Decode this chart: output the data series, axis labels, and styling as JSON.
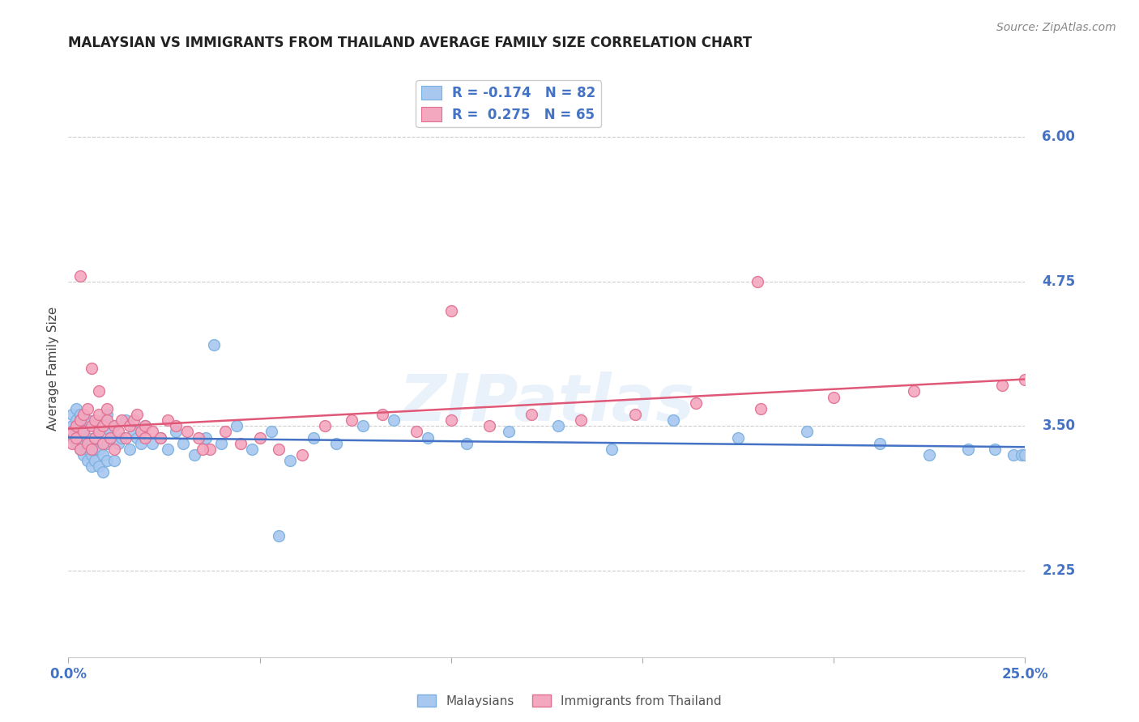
{
  "title": "MALAYSIAN VS IMMIGRANTS FROM THAILAND AVERAGE FAMILY SIZE CORRELATION CHART",
  "source": "Source: ZipAtlas.com",
  "ylabel": "Average Family Size",
  "xmin": 0.0,
  "xmax": 0.25,
  "ymin": 1.5,
  "ymax": 6.5,
  "yticks": [
    2.25,
    3.5,
    4.75,
    6.0
  ],
  "xticks": [
    0.0,
    0.05,
    0.1,
    0.15,
    0.2,
    0.25
  ],
  "watermark": "ZIPatlas",
  "series": [
    {
      "label": "Malaysians",
      "R": -0.174,
      "N": 82,
      "color": "#a8c8f0",
      "line_color": "#4472c4",
      "marker_edge": "#7ab0e0",
      "x": [
        0.001,
        0.001,
        0.001,
        0.002,
        0.002,
        0.002,
        0.002,
        0.003,
        0.003,
        0.003,
        0.003,
        0.003,
        0.004,
        0.004,
        0.004,
        0.004,
        0.005,
        0.005,
        0.005,
        0.005,
        0.005,
        0.006,
        0.006,
        0.006,
        0.007,
        0.007,
        0.007,
        0.007,
        0.008,
        0.008,
        0.008,
        0.009,
        0.009,
        0.009,
        0.01,
        0.01,
        0.01,
        0.011,
        0.011,
        0.012,
        0.012,
        0.013,
        0.014,
        0.015,
        0.016,
        0.017,
        0.018,
        0.019,
        0.02,
        0.022,
        0.024,
        0.026,
        0.028,
        0.03,
        0.033,
        0.036,
        0.04,
        0.044,
        0.048,
        0.053,
        0.058,
        0.064,
        0.07,
        0.077,
        0.085,
        0.094,
        0.104,
        0.115,
        0.128,
        0.142,
        0.158,
        0.175,
        0.193,
        0.212,
        0.225,
        0.235,
        0.242,
        0.247,
        0.249,
        0.25,
        0.038,
        0.055
      ],
      "y": [
        3.4,
        3.5,
        3.6,
        3.35,
        3.45,
        3.55,
        3.65,
        3.3,
        3.4,
        3.5,
        3.55,
        3.6,
        3.25,
        3.35,
        3.45,
        3.55,
        3.2,
        3.3,
        3.4,
        3.5,
        3.55,
        3.15,
        3.25,
        3.35,
        3.2,
        3.3,
        3.4,
        3.5,
        3.15,
        3.3,
        3.45,
        3.1,
        3.25,
        3.55,
        3.2,
        3.35,
        3.6,
        3.45,
        3.4,
        3.2,
        3.5,
        3.35,
        3.4,
        3.55,
        3.3,
        3.45,
        3.4,
        3.35,
        3.5,
        3.35,
        3.4,
        3.3,
        3.45,
        3.35,
        3.25,
        3.4,
        3.35,
        3.5,
        3.3,
        3.45,
        3.2,
        3.4,
        3.35,
        3.5,
        3.55,
        3.4,
        3.35,
        3.45,
        3.5,
        3.3,
        3.55,
        3.4,
        3.45,
        3.35,
        3.25,
        3.3,
        3.3,
        3.25,
        3.25,
        3.25,
        4.2,
        2.55
      ]
    },
    {
      "label": "Immigrants from Thailand",
      "R": 0.275,
      "N": 65,
      "color": "#f4a8c0",
      "line_color": "#e05878",
      "marker_edge": "#e07090",
      "x": [
        0.001,
        0.001,
        0.002,
        0.002,
        0.003,
        0.003,
        0.004,
        0.004,
        0.005,
        0.005,
        0.006,
        0.006,
        0.007,
        0.007,
        0.008,
        0.008,
        0.009,
        0.009,
        0.01,
        0.01,
        0.011,
        0.012,
        0.013,
        0.014,
        0.015,
        0.016,
        0.017,
        0.018,
        0.019,
        0.02,
        0.022,
        0.024,
        0.026,
        0.028,
        0.031,
        0.034,
        0.037,
        0.041,
        0.045,
        0.05,
        0.055,
        0.061,
        0.067,
        0.074,
        0.082,
        0.091,
        0.1,
        0.11,
        0.121,
        0.134,
        0.148,
        0.164,
        0.181,
        0.2,
        0.221,
        0.244,
        0.25,
        0.003,
        0.006,
        0.008,
        0.012,
        0.02,
        0.035,
        0.1,
        0.18
      ],
      "y": [
        3.35,
        3.45,
        3.4,
        3.5,
        3.3,
        3.55,
        3.45,
        3.6,
        3.35,
        3.65,
        3.3,
        3.5,
        3.4,
        3.55,
        3.45,
        3.6,
        3.35,
        3.5,
        3.55,
        3.65,
        3.4,
        3.5,
        3.45,
        3.55,
        3.4,
        3.5,
        3.55,
        3.6,
        3.45,
        3.5,
        3.45,
        3.4,
        3.55,
        3.5,
        3.45,
        3.4,
        3.3,
        3.45,
        3.35,
        3.4,
        3.3,
        3.25,
        3.5,
        3.55,
        3.6,
        3.45,
        3.55,
        3.5,
        3.6,
        3.55,
        3.6,
        3.7,
        3.65,
        3.75,
        3.8,
        3.85,
        3.9,
        4.8,
        4.0,
        3.8,
        3.3,
        3.4,
        3.3,
        4.5,
        4.75
      ]
    }
  ],
  "title_fontsize": 12,
  "axis_label_fontsize": 11,
  "tick_fontsize": 12,
  "legend_fontsize": 12,
  "source_fontsize": 10,
  "background_color": "#ffffff",
  "grid_color": "#cccccc",
  "blue_color": "#4472c4",
  "watermark_color": "#d0e4f5",
  "watermark_alpha": 0.45
}
